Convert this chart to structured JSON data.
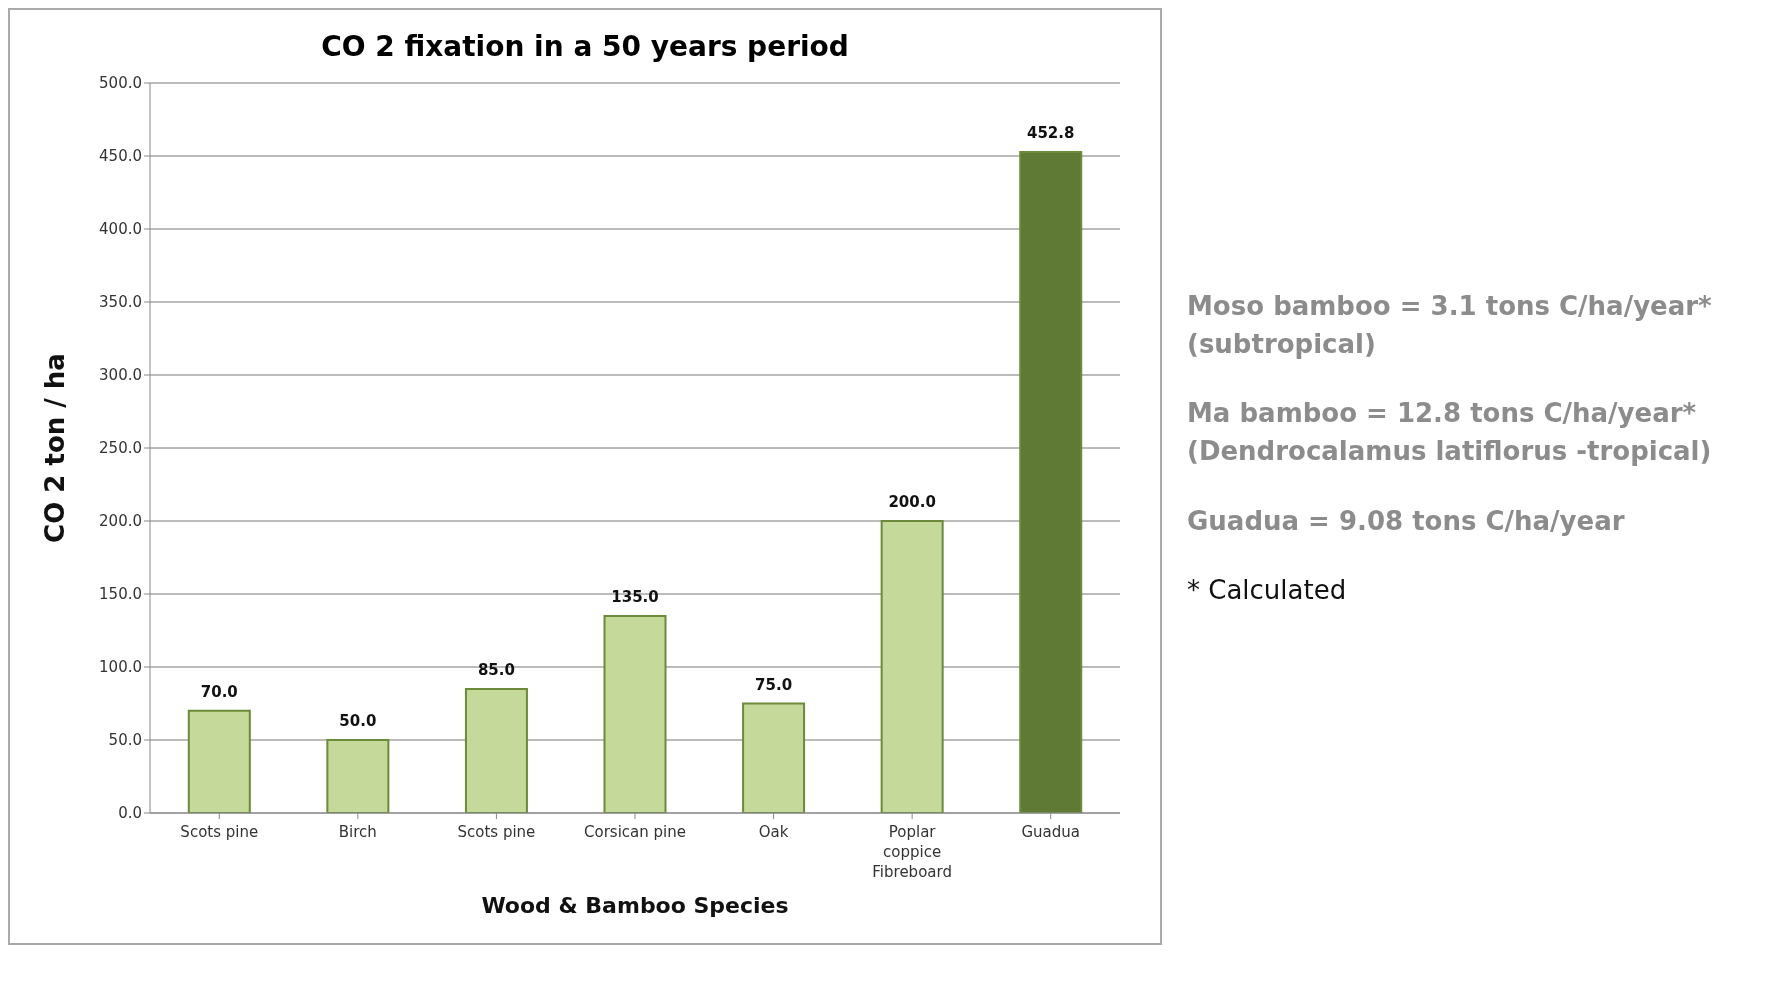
{
  "chart_data": {
    "type": "bar",
    "title": "CO 2 fixation in a 50 years period",
    "xlabel": "Wood  & Bamboo Species",
    "ylabel": "CO 2  ton  / ha",
    "categories": [
      "Scots pine",
      "Birch",
      "Scots pine",
      "Corsican pine",
      "Oak",
      "Poplar coppice Fibreboard",
      "Guadua"
    ],
    "values": [
      70,
      50,
      85,
      135,
      75,
      200,
      452.8
    ],
    "colors": [
      "#c5d99a",
      "#c5d99a",
      "#c5d99a",
      "#c5d99a",
      "#c5d99a",
      "#c5d99a",
      "#5f7a35"
    ],
    "value_labels": [
      "70.0",
      "50.0",
      "85.0",
      "135.0",
      "75.0",
      "200.0",
      "452.8"
    ],
    "ylim": [
      0,
      500
    ],
    "yticks": [
      {
        "value": 0,
        "label": "0.0"
      },
      {
        "value": 50,
        "label": "50.0"
      },
      {
        "value": 100,
        "label": "100.0"
      },
      {
        "value": 150,
        "label": "150.0"
      },
      {
        "value": 200,
        "label": "200.0"
      },
      {
        "value": 250,
        "label": "250.0"
      },
      {
        "value": 300,
        "label": "300.0"
      },
      {
        "value": 350,
        "label": "350.0"
      },
      {
        "value": 400,
        "label": "400.0"
      },
      {
        "value": 450,
        "label": "450.0"
      },
      {
        "value": 500,
        "label": "500.0"
      }
    ],
    "grid": "y",
    "legend": false,
    "annotations": [
      "Moso bamboo = 3.1 tons C/ha/year* (subtropical)",
      "Ma bamboo = 12.8 tons C/ha/year* (Dendrocalamus latiflorus -tropical)",
      "Guadua = 9.08 tons C/ha/year",
      "* Calculated"
    ]
  }
}
